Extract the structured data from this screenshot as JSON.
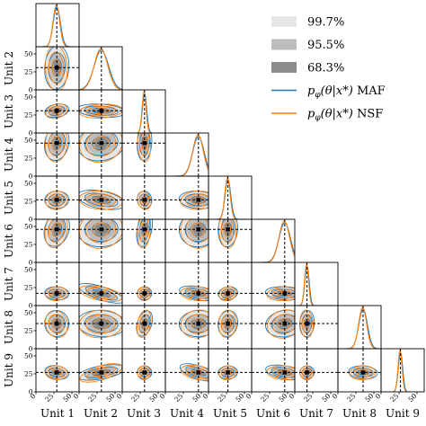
{
  "chart_data": {
    "type": "corner",
    "units": [
      "Unit 1",
      "Unit 2",
      "Unit 3",
      "Unit 4",
      "Unit 5",
      "Unit 6",
      "Unit 7",
      "Unit 8",
      "Unit 9"
    ],
    "axis_range": [
      0,
      60
    ],
    "ticks": [
      0,
      25,
      50
    ],
    "truth": [
      29,
      31,
      31,
      46,
      27,
      46,
      17,
      35,
      27
    ],
    "spread": [
      5,
      10,
      3,
      8,
      4,
      8,
      3,
      6,
      3
    ],
    "colors": {
      "maf": "#1f77b4",
      "nsf": "#ff7f0e",
      "truth": "#000000",
      "c997": "#e6e6e6",
      "c955": "#bdbdbd",
      "c683": "#8c8c8c"
    },
    "legend": {
      "items": [
        {
          "label": "99.7%",
          "kind": "patch",
          "color": "#e6e6e6"
        },
        {
          "label": "95.5%",
          "kind": "patch",
          "color": "#bdbdbd"
        },
        {
          "label": "68.3%",
          "kind": "patch",
          "color": "#8c8c8c"
        },
        {
          "label_prefix": "p",
          "label_sub": "φ",
          "label_main": "(θ|x*)",
          "label_suffix": "MAF",
          "kind": "line",
          "color": "#1f77b4"
        },
        {
          "label_prefix": "p",
          "label_sub": "φ",
          "label_main": "(θ|x*)",
          "label_suffix": "NSF",
          "kind": "line",
          "color": "#ff7f0e"
        }
      ]
    },
    "grid": false
  }
}
